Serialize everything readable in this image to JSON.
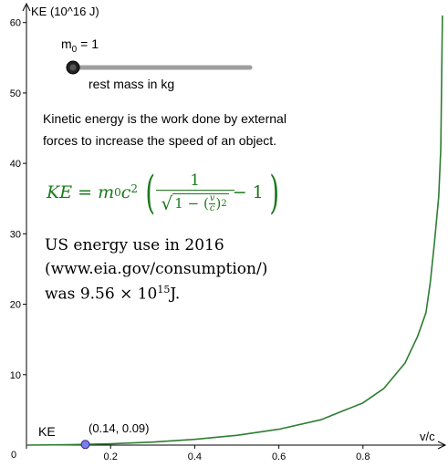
{
  "chart_data": {
    "type": "line",
    "xlabel": "v/c",
    "ylabel": "KE (10^16 J)",
    "xlim": [
      0,
      1
    ],
    "ylim": [
      0,
      62
    ],
    "x_ticks": [
      "0.2",
      "0.4",
      "0.6",
      "0.8"
    ],
    "y_ticks": [
      "10",
      "20",
      "30",
      "40",
      "50",
      "60"
    ],
    "origin_label": "0",
    "grid": false,
    "series": [
      {
        "name": "KE",
        "color": "#2e7d32",
        "x": [
          0.0,
          0.1,
          0.2,
          0.3,
          0.4,
          0.5,
          0.6,
          0.7,
          0.8,
          0.85,
          0.9,
          0.93,
          0.95,
          0.96,
          0.97,
          0.98,
          0.985
        ],
        "y": [
          0.0,
          0.05,
          0.18,
          0.43,
          0.81,
          1.39,
          2.25,
          3.6,
          6.0,
          8.06,
          11.65,
          15.44,
          18.82,
          23.12,
          28.83,
          35.24,
          42.1
        ]
      }
    ],
    "point": {
      "x": 0.14,
      "y": 0.09,
      "label": "(0.14, 0.09)",
      "color": "#7c7cf2"
    },
    "series_label": "KE"
  },
  "slider": {
    "label": "m_0 = 1",
    "value": 1,
    "caption": "rest mass in kg"
  },
  "texts": {
    "description_line1": "Kinetic energy is the work done by external",
    "description_line2": "forces to increase the speed of an object.",
    "energy_line1": "US energy use in 2016",
    "energy_line2": "(www.eia.gov/consumption/)",
    "energy_line3_prefix": "was 9.56 × 10",
    "energy_line3_exp": "15",
    "energy_line3_suffix": "J."
  },
  "formula": {
    "lhs": "KE = m",
    "sub": "0",
    "c": "c",
    "sq": "2",
    "one": "1",
    "v": "v",
    "cden": "c",
    "minus_one": "− 1",
    "color": "#1b7a1b"
  },
  "colors": {
    "curve": "#2e7d32",
    "point": "#7c7cf2",
    "slider_track": "#9e9e9e"
  }
}
